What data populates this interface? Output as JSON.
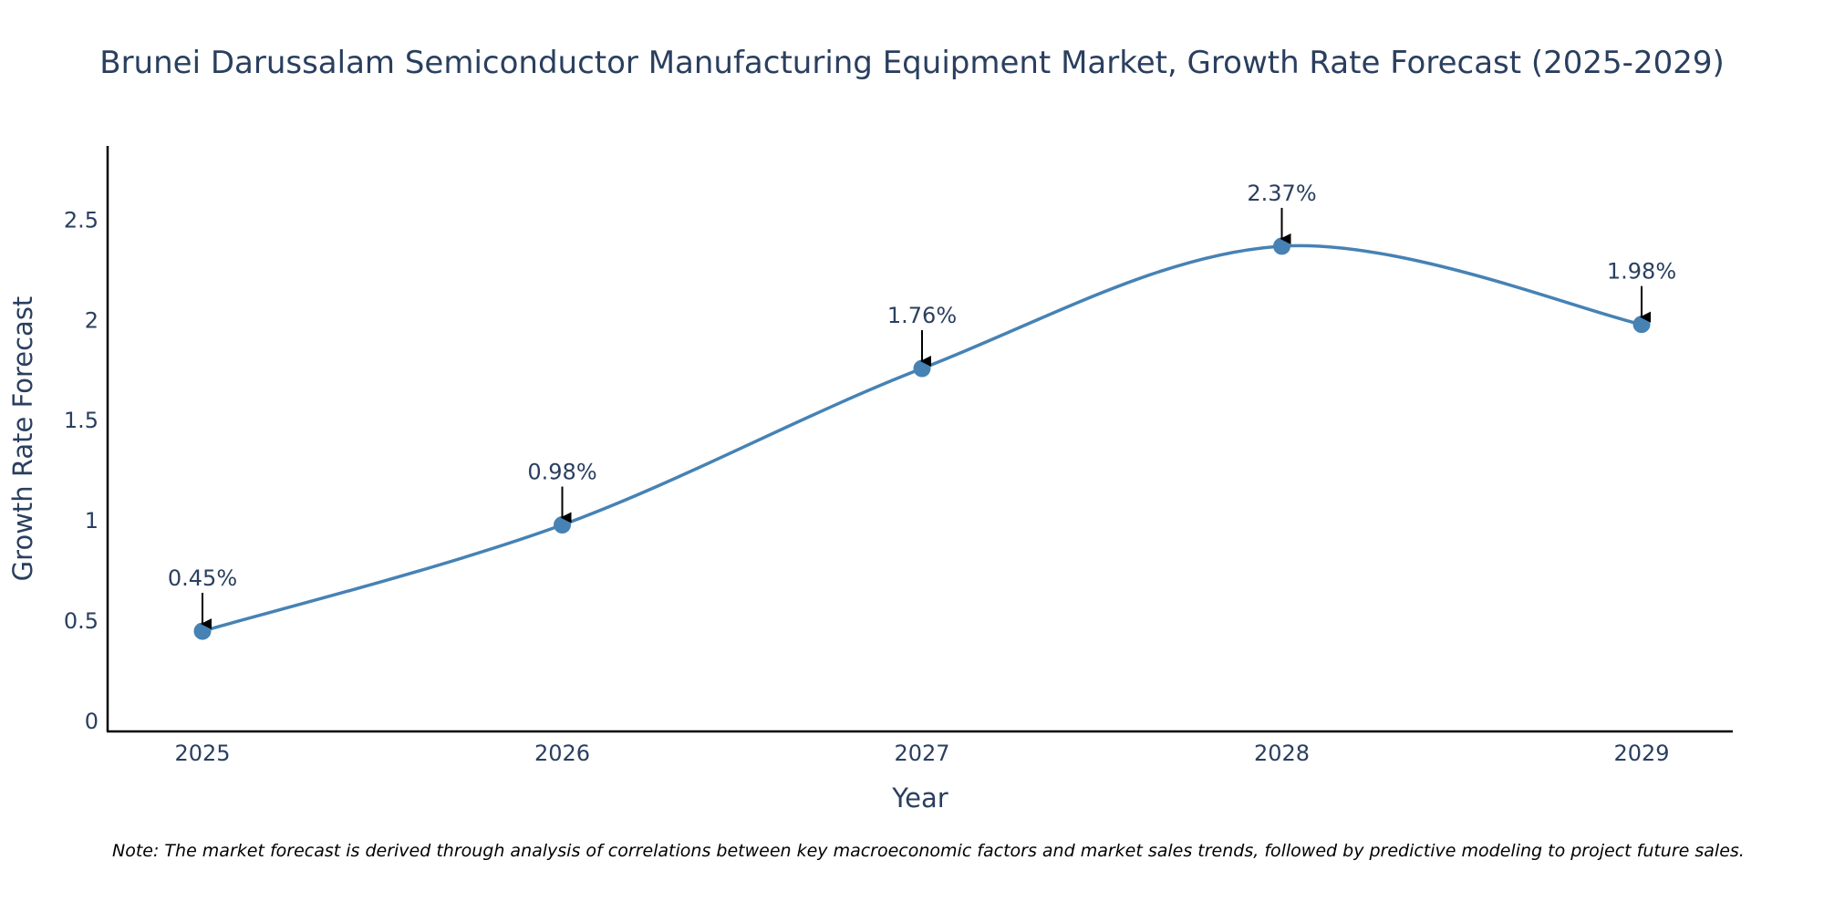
{
  "chart_data": {
    "type": "line",
    "title": "Brunei Darussalam Semiconductor Manufacturing Equipment Market, Growth Rate Forecast (2025-2029)",
    "xlabel": "Year",
    "ylabel": "Growth Rate Forecast",
    "categories": [
      "2025",
      "2026",
      "2027",
      "2028",
      "2029"
    ],
    "values": [
      0.45,
      0.98,
      1.76,
      2.37,
      1.98
    ],
    "data_labels": [
      "0.45%",
      "0.98%",
      "1.76%",
      "2.37%",
      "1.98%"
    ],
    "ylim": [
      -0.05,
      2.87
    ],
    "yticks": [
      0,
      0.5,
      1,
      1.5,
      2,
      2.5
    ],
    "ytick_labels": [
      "0",
      "0.5",
      "1",
      "1.5",
      "2",
      "2.5"
    ],
    "grid": false,
    "line_shape": "spline",
    "colors": {
      "line": "#4682b4",
      "marker": "#4682b4",
      "text": "#2a3f5f",
      "axis": "#000000",
      "arrow": "#000000"
    },
    "note": "Note: The market forecast is derived through analysis of correlations between key macroeconomic factors and market sales trends, followed by predictive modeling to project future sales."
  }
}
